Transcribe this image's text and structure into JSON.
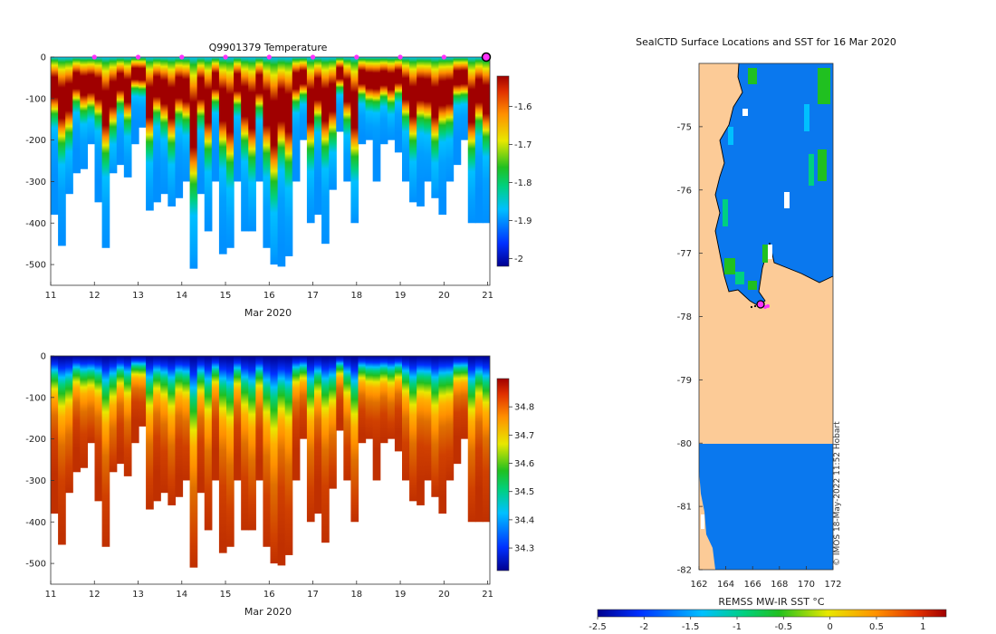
{
  "chart_data": [
    {
      "type": "heatmap",
      "id": "temperature",
      "title": "Q9901379  Temperature",
      "xlabel": "Mar 2020",
      "ylabel": "",
      "xlim": [
        11,
        21.05
      ],
      "ylim": [
        -550,
        0
      ],
      "x_ticks": [
        "11",
        "12",
        "13",
        "14",
        "15",
        "16",
        "17",
        "18",
        "19",
        "20",
        "21"
      ],
      "y_ticks": [
        "0",
        "-100",
        "-200",
        "-300",
        "-400",
        "-500"
      ],
      "colorbar": {
        "ticks": [
          "-1.6",
          "-1.7",
          "-1.8",
          "-1.9",
          "-2"
        ],
        "range": [
          -2.02,
          -1.52
        ]
      },
      "surface_markers_days": [
        12,
        13,
        14,
        15,
        16,
        17,
        18,
        19,
        20
      ]
    },
    {
      "type": "heatmap",
      "id": "salinity",
      "title": "",
      "xlabel": "Mar 2020",
      "ylabel": "",
      "xlim": [
        11,
        21.05
      ],
      "ylim": [
        -550,
        0
      ],
      "x_ticks": [
        "11",
        "12",
        "13",
        "14",
        "15",
        "16",
        "17",
        "18",
        "19",
        "20",
        "21"
      ],
      "y_ticks": [
        "0",
        "-100",
        "-200",
        "-300",
        "-400",
        "-500"
      ],
      "colorbar": {
        "ticks": [
          "34.8",
          "34.7",
          "34.6",
          "34.5",
          "34.4",
          "34.3"
        ],
        "range": [
          34.22,
          34.9
        ]
      }
    },
    {
      "type": "heatmap",
      "id": "sst-map",
      "title": "SealCTD Surface Locations and SST for 16 Mar 2020",
      "xlabel": "",
      "ylabel": "",
      "xlim": [
        162,
        172
      ],
      "ylim": [
        -82,
        -74
      ],
      "x_ticks": [
        "162",
        "164",
        "166",
        "168",
        "170",
        "172"
      ],
      "y_ticks": [
        "-75",
        "-76",
        "-77",
        "-78",
        "-79",
        "-80",
        "-81",
        "-82"
      ],
      "colorbar": {
        "label": "REMSS MW-IR SST °C",
        "ticks": [
          "-2.5",
          "-2",
          "-1.5",
          "-1",
          "-0.5",
          "0",
          "0.5",
          "1"
        ],
        "range": [
          -2.5,
          1.25
        ]
      },
      "stamp": "© IMOS 18-May-2022 11:52 Hobart"
    }
  ],
  "colors": {
    "land": "#fccb97",
    "ocean_sst": "#0a78ee",
    "marker": "#ff33ff"
  }
}
